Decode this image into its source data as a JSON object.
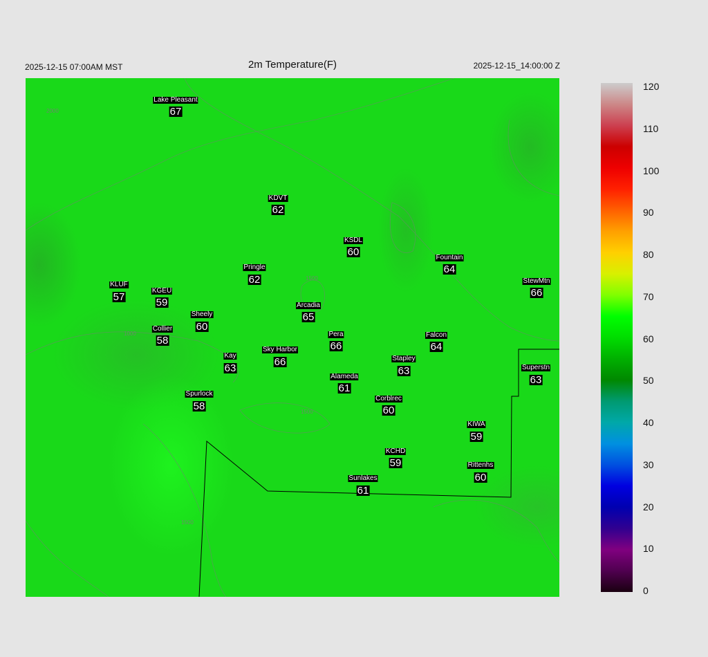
{
  "header": {
    "left": "2025-12-15 07:00AM MST",
    "title": "2m Temperature(F)",
    "right": "2025-12-15_14:00:00 Z"
  },
  "colorbar": {
    "ticks": [
      "120",
      "110",
      "100",
      "90",
      "80",
      "70",
      "60",
      "50",
      "40",
      "30",
      "20",
      "10",
      "0"
    ],
    "min": 0,
    "max": 120,
    "colors": [
      "#1a0010",
      "#500050",
      "#800080",
      "#300090",
      "#0000b0",
      "#0000e0",
      "#0050e0",
      "#0090e0",
      "#00a8a8",
      "#009a70",
      "#008800",
      "#00b000",
      "#00dd00",
      "#00ff00",
      "#80ff00",
      "#d8f000",
      "#ffd000",
      "#ffa000",
      "#ff6000",
      "#ff2000",
      "#ee0000",
      "#cc0000",
      "#cc4050",
      "#cc8888",
      "#cccccc"
    ]
  },
  "map": {
    "contour_labels": [
      "1000",
      "1500",
      "1500",
      "1500",
      "2000"
    ]
  },
  "stations": [
    {
      "name": "Lake Pleasant",
      "temp": "67"
    },
    {
      "name": "KDVT",
      "temp": "62"
    },
    {
      "name": "KSDL",
      "temp": "60"
    },
    {
      "name": "Fountain",
      "temp": "64"
    },
    {
      "name": "StewMtn",
      "temp": "66"
    },
    {
      "name": "KLUF",
      "temp": "57"
    },
    {
      "name": "KGEU",
      "temp": "59"
    },
    {
      "name": "Pringle",
      "temp": "62"
    },
    {
      "name": "Arcadia",
      "temp": "65"
    },
    {
      "name": "Sheely",
      "temp": "60"
    },
    {
      "name": "Collier",
      "temp": "58"
    },
    {
      "name": "Pera",
      "temp": "66"
    },
    {
      "name": "Falcon",
      "temp": "64"
    },
    {
      "name": "Sky Harbor",
      "temp": "66"
    },
    {
      "name": "Kay",
      "temp": "63"
    },
    {
      "name": "Stapley",
      "temp": "63"
    },
    {
      "name": "Alameda",
      "temp": "61"
    },
    {
      "name": "Superstn",
      "temp": "63"
    },
    {
      "name": "Corblrec",
      "temp": "60"
    },
    {
      "name": "Spurlock",
      "temp": "58"
    },
    {
      "name": "KIWA",
      "temp": "59"
    },
    {
      "name": "KCHD",
      "temp": "59"
    },
    {
      "name": "Rittenhs",
      "temp": "60"
    },
    {
      "name": "Sunlakes",
      "temp": "61"
    }
  ]
}
